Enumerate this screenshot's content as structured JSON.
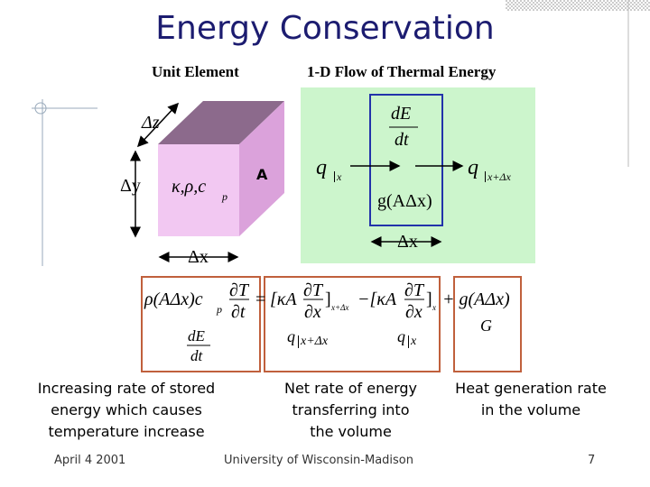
{
  "header": {
    "title": "Energy Conservation"
  },
  "unit_element": {
    "title": "Unit Element",
    "dz": "Δz",
    "dy": "Δy",
    "dx": "Δx",
    "properties": "κ,ρ,c",
    "cp_sub": "p",
    "area": "A"
  },
  "flow": {
    "title": "1-D Flow of Thermal Energy",
    "storage_num": "dE",
    "storage_den": "dt",
    "q_in": "q",
    "q_in_sub": "x",
    "q_out": "q",
    "q_out_sub": "x+Δx",
    "generation": "g(AΔx)",
    "dx": "Δx"
  },
  "equation": {
    "storage": "ρ(AΔx)c",
    "storage_sub": "p",
    "dT_1": "∂T",
    "dt_1": "∂t",
    "equals": "=",
    "kA_1": "[κA",
    "dT_2": "∂T",
    "dx_1": "∂x",
    "close_1": "]",
    "sub_1": "x+Δx",
    "minus_kA": "−[κA",
    "dT_3": "∂T",
    "dx_2": "∂x",
    "close_2": "]",
    "sub_2": "x",
    "generation": "+ g(AΔx)"
  },
  "box_labels": {
    "storage_num": "dE",
    "storage_den": "dt",
    "out": "q",
    "out_sub": "x+Δx",
    "in": "q",
    "in_sub": "x",
    "generation": "G"
  },
  "captions": [
    [
      "Increasing rate of stored",
      "energy which causes",
      "temperature increase"
    ],
    [
      "Net rate of energy",
      "transferring into",
      "the volume"
    ],
    [
      "Heat generation rate",
      "in the volume"
    ]
  ],
  "footer": {
    "date": "April 4 2001",
    "organization": "University of Wisconsin-Madison",
    "page": "7"
  }
}
